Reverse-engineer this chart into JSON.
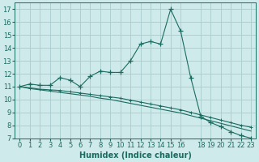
{
  "title": "",
  "xlabel": "Humidex (Indice chaleur)",
  "background_color": "#ceeaea",
  "line_color": "#1a6b60",
  "grid_color": "#a8cccc",
  "x_main": [
    0,
    1,
    2,
    3,
    4,
    5,
    6,
    7,
    8,
    9,
    10,
    11,
    12,
    13,
    14,
    15,
    16,
    17,
    18,
    19,
    20,
    21,
    22,
    23
  ],
  "y_main": [
    11.0,
    11.2,
    11.1,
    11.1,
    11.7,
    11.5,
    11.0,
    11.8,
    12.2,
    12.1,
    12.1,
    13.0,
    14.3,
    14.5,
    14.3,
    17.0,
    15.3,
    11.7,
    8.7,
    8.2,
    7.9,
    7.5,
    7.2,
    7.0
  ],
  "y_line2": [
    11.0,
    10.9,
    10.8,
    10.75,
    10.7,
    10.6,
    10.5,
    10.4,
    10.3,
    10.2,
    10.1,
    9.95,
    9.8,
    9.65,
    9.5,
    9.35,
    9.2,
    9.0,
    8.8,
    8.6,
    8.4,
    8.2,
    8.0,
    7.85
  ],
  "y_line3": [
    11.0,
    10.85,
    10.75,
    10.65,
    10.55,
    10.45,
    10.35,
    10.25,
    10.1,
    10.0,
    9.85,
    9.7,
    9.55,
    9.4,
    9.25,
    9.1,
    8.95,
    8.75,
    8.55,
    8.35,
    8.15,
    7.95,
    7.75,
    7.55
  ],
  "ylim": [
    7,
    17.5
  ],
  "xlim": [
    -0.5,
    23.5
  ],
  "yticks": [
    7,
    8,
    9,
    10,
    11,
    12,
    13,
    14,
    15,
    16,
    17
  ],
  "xticks": [
    0,
    1,
    2,
    3,
    4,
    5,
    6,
    7,
    8,
    9,
    10,
    11,
    12,
    13,
    14,
    15,
    16,
    18,
    19,
    20,
    21,
    22,
    23
  ],
  "xtick_labels": [
    "0",
    "1",
    "2",
    "3",
    "4",
    "5",
    "6",
    "7",
    "8",
    "9",
    "10",
    "11",
    "12",
    "13",
    "14",
    "15",
    "16",
    "18",
    "19",
    "20",
    "21",
    "22",
    "23"
  ],
  "markersize": 3,
  "linewidth": 0.8,
  "fontsize_axis": 6,
  "fontsize_xlabel": 7
}
